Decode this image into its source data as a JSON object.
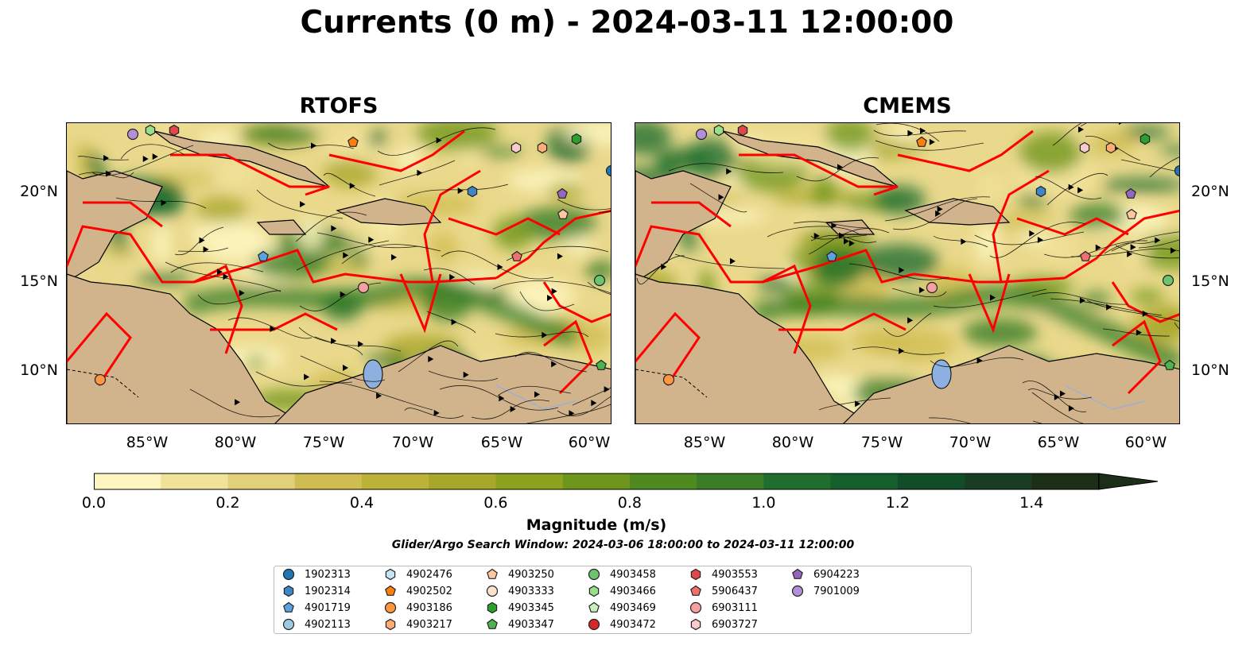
{
  "figure": {
    "title": "Currents (0 m) - 2024-03-11 12:00:00",
    "panels": [
      {
        "title": "RTOFS",
        "side": "left"
      },
      {
        "title": "CMEMS",
        "side": "right"
      }
    ],
    "lon_labels": [
      "85°W",
      "80°W",
      "75°W",
      "70°W",
      "65°W",
      "60°W"
    ],
    "lat_labels": [
      "20°N",
      "15°N",
      "10°N"
    ]
  },
  "colorbar": {
    "label": "Magnitude (m/s)",
    "ticks": [
      "0.0",
      "0.2",
      "0.4",
      "0.6",
      "0.8",
      "1.0",
      "1.2",
      "1.4"
    ],
    "range": [
      0.0,
      1.5
    ],
    "extend": "max",
    "colors": [
      "#fdf6c0",
      "#f1e29a",
      "#e2cf7a",
      "#cfbd52",
      "#bdb238",
      "#a9a72a",
      "#8ea21d",
      "#6f961c",
      "#4f8a20",
      "#3a7d26",
      "#1f6e2e",
      "#145f2c",
      "#124d2a",
      "#183d22",
      "#1c2d18"
    ]
  },
  "search_window": "Glider/Argo Search Window: 2024-03-06 18:00:00 to 2024-03-11 12:00:00",
  "legend": {
    "entries": [
      {
        "id": "1902313",
        "marker": "circle",
        "color": "#1f77b4"
      },
      {
        "id": "1902314",
        "marker": "hexagon",
        "color": "#3f86c6"
      },
      {
        "id": "4901719",
        "marker": "pentagon",
        "color": "#5ba3e0"
      },
      {
        "id": "4902113",
        "marker": "circle",
        "color": "#9ecae1"
      },
      {
        "id": "4902476",
        "marker": "hexagon",
        "color": "#c6e4f5"
      },
      {
        "id": "4902502",
        "marker": "pentagon",
        "color": "#ff7f0e"
      },
      {
        "id": "4903186",
        "marker": "circle",
        "color": "#ff9640"
      },
      {
        "id": "4903217",
        "marker": "hexagon",
        "color": "#ffad72"
      },
      {
        "id": "4903250",
        "marker": "pentagon",
        "color": "#ffc79e"
      },
      {
        "id": "4903333",
        "marker": "circle",
        "color": "#ffe3cc"
      },
      {
        "id": "4903345",
        "marker": "hexagon",
        "color": "#2ca02c"
      },
      {
        "id": "4903347",
        "marker": "pentagon",
        "color": "#4fb34f"
      },
      {
        "id": "4903458",
        "marker": "circle",
        "color": "#6cc46c"
      },
      {
        "id": "4903466",
        "marker": "hexagon",
        "color": "#98df8a"
      },
      {
        "id": "4903469",
        "marker": "pentagon",
        "color": "#c8f0bc"
      },
      {
        "id": "4903472",
        "marker": "circle",
        "color": "#d62728"
      },
      {
        "id": "4903553",
        "marker": "hexagon",
        "color": "#e0474a"
      },
      {
        "id": "5906437",
        "marker": "pentagon",
        "color": "#f07070"
      },
      {
        "id": "6903111",
        "marker": "circle",
        "color": "#f4a0a0"
      },
      {
        "id": "6903727",
        "marker": "hexagon",
        "color": "#f8cccc"
      },
      {
        "id": "6904223",
        "marker": "pentagon",
        "color": "#9467bd"
      },
      {
        "id": "7901009",
        "marker": "circle",
        "color": "#b28fd6"
      }
    ]
  }
}
